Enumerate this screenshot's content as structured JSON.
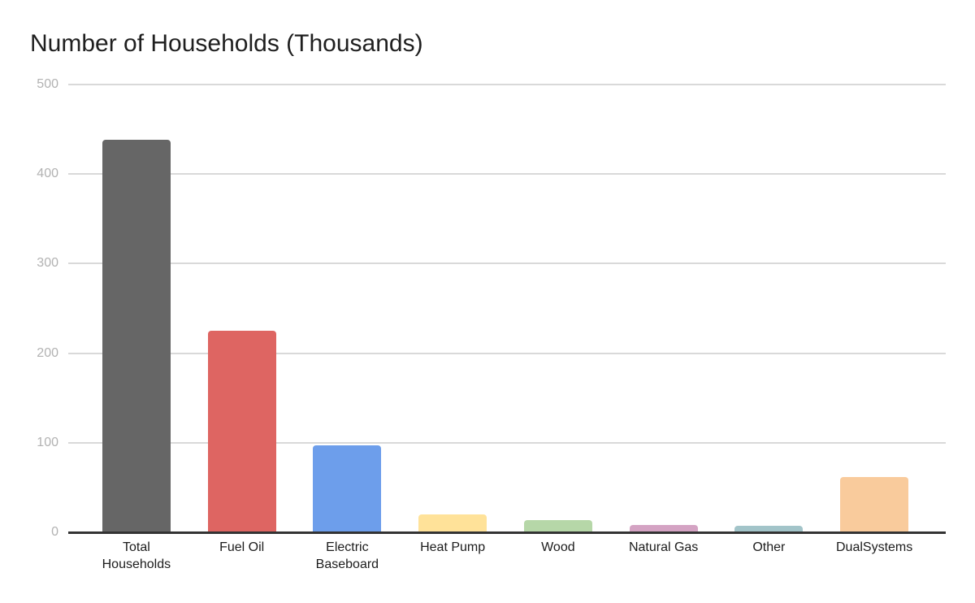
{
  "page": {
    "background_color": "#ffffff"
  },
  "chart_data": {
    "type": "bar",
    "title": "Number of Households (Thousands)",
    "categories": [
      "Total Households",
      "Fuel Oil",
      "Electric Baseboard",
      "Heat Pump",
      "Wood",
      "Natural Gas",
      "Other",
      "DualSystems"
    ],
    "category_label_lines": [
      [
        "Total",
        "Households"
      ],
      [
        "Fuel Oil"
      ],
      [
        "Electric",
        "Baseboard"
      ],
      [
        "Heat Pump"
      ],
      [
        "Wood"
      ],
      [
        "Natural Gas"
      ],
      [
        "Other"
      ],
      [
        "DualSystems"
      ]
    ],
    "values": [
      438,
      225,
      97,
      20,
      14,
      8,
      7,
      62
    ],
    "bar_colors": [
      "#666666",
      "#de6562",
      "#6d9eeb",
      "#ffe299",
      "#b6d7a8",
      "#d4a3c3",
      "#a2c4c9",
      "#f9cb9c"
    ],
    "xlabel": "",
    "ylabel": "",
    "ylim": [
      0,
      500
    ],
    "yticks": [
      0,
      100,
      200,
      300,
      400,
      500
    ],
    "grid": true,
    "legend": "none",
    "title_color": "#1f1f1f",
    "gridline_color": "#d9d9d9",
    "axis_line_color": "#333333",
    "ytick_label_color": "#b2b2b2",
    "xtick_label_color": "#1c1c1c"
  }
}
